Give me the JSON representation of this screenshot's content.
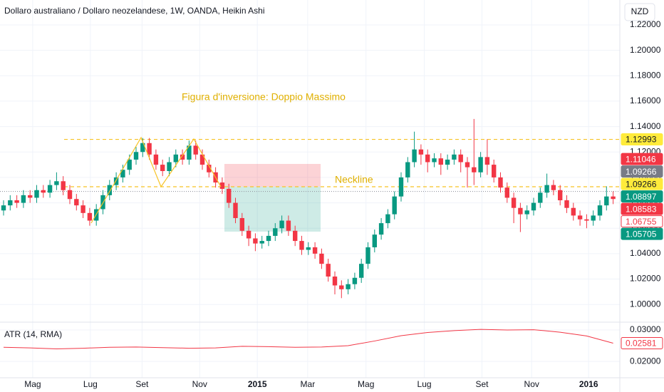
{
  "chart_data": {
    "type": "candlestick",
    "title": "Dollaro australiano / Dollaro neozelandese, 1W, OANDA, Heikin Ashi",
    "currency": "NZD",
    "annotations": [
      "Figura d'inversione: Doppio Massimo",
      "Neckline"
    ],
    "up_color": "#089981",
    "down_color": "#f23645",
    "candles": [
      [
        1.074,
        1.082,
        1.07,
        1.078
      ],
      [
        1.078,
        1.086,
        1.074,
        1.082
      ],
      [
        1.082,
        1.086,
        1.076,
        1.08
      ],
      [
        1.08,
        1.09,
        1.076,
        1.086
      ],
      [
        1.086,
        1.09,
        1.08,
        1.084
      ],
      [
        1.084,
        1.094,
        1.08,
        1.09
      ],
      [
        1.09,
        1.094,
        1.084,
        1.088
      ],
      [
        1.088,
        1.098,
        1.084,
        1.094
      ],
      [
        1.094,
        1.104,
        1.09,
        1.097
      ],
      [
        1.097,
        1.101,
        1.086,
        1.09
      ],
      [
        1.09,
        1.094,
        1.079,
        1.083
      ],
      [
        1.083,
        1.087,
        1.074,
        1.078
      ],
      [
        1.078,
        1.082,
        1.068,
        1.072
      ],
      [
        1.072,
        1.076,
        1.062,
        1.066
      ],
      [
        1.066,
        1.079,
        1.062,
        1.075
      ],
      [
        1.075,
        1.09,
        1.071,
        1.086
      ],
      [
        1.086,
        1.098,
        1.082,
        1.094
      ],
      [
        1.094,
        1.104,
        1.09,
        1.1
      ],
      [
        1.1,
        1.11,
        1.096,
        1.106
      ],
      [
        1.106,
        1.118,
        1.102,
        1.114
      ],
      [
        1.114,
        1.124,
        1.11,
        1.12
      ],
      [
        1.12,
        1.131,
        1.116,
        1.127
      ],
      [
        1.127,
        1.131,
        1.114,
        1.118
      ],
      [
        1.118,
        1.122,
        1.106,
        1.11
      ],
      [
        1.11,
        1.114,
        1.101,
        1.105
      ],
      [
        1.105,
        1.116,
        1.101,
        1.112
      ],
      [
        1.112,
        1.122,
        1.108,
        1.118
      ],
      [
        1.118,
        1.122,
        1.11,
        1.114
      ],
      [
        1.114,
        1.129,
        1.11,
        1.125
      ],
      [
        1.125,
        1.129,
        1.114,
        1.118
      ],
      [
        1.118,
        1.122,
        1.106,
        1.11
      ],
      [
        1.11,
        1.114,
        1.1,
        1.104
      ],
      [
        1.104,
        1.108,
        1.092,
        1.096
      ],
      [
        1.096,
        1.1,
        1.087,
        1.091
      ],
      [
        1.091,
        1.095,
        1.076,
        1.08
      ],
      [
        1.08,
        1.084,
        1.064,
        1.068
      ],
      [
        1.068,
        1.072,
        1.054,
        1.058
      ],
      [
        1.058,
        1.062,
        1.046,
        1.052
      ],
      [
        1.052,
        1.056,
        1.042,
        1.048
      ],
      [
        1.048,
        1.054,
        1.044,
        1.05
      ],
      [
        1.05,
        1.058,
        1.046,
        1.054
      ],
      [
        1.054,
        1.064,
        1.05,
        1.06
      ],
      [
        1.06,
        1.07,
        1.056,
        1.066
      ],
      [
        1.066,
        1.07,
        1.054,
        1.058
      ],
      [
        1.058,
        1.062,
        1.046,
        1.05
      ],
      [
        1.05,
        1.054,
        1.039,
        1.043
      ],
      [
        1.043,
        1.049,
        1.039,
        1.045
      ],
      [
        1.045,
        1.049,
        1.036,
        1.04
      ],
      [
        1.04,
        1.044,
        1.028,
        1.032
      ],
      [
        1.032,
        1.036,
        1.018,
        1.022
      ],
      [
        1.022,
        1.026,
        1.008,
        1.015
      ],
      [
        1.015,
        1.019,
        1.005,
        1.012
      ],
      [
        1.012,
        1.02,
        1.008,
        1.016
      ],
      [
        1.016,
        1.025,
        1.012,
        1.021
      ],
      [
        1.021,
        1.036,
        1.017,
        1.032
      ],
      [
        1.032,
        1.049,
        1.028,
        1.045
      ],
      [
        1.045,
        1.059,
        1.041,
        1.055
      ],
      [
        1.055,
        1.068,
        1.051,
        1.064
      ],
      [
        1.064,
        1.075,
        1.06,
        1.071
      ],
      [
        1.071,
        1.089,
        1.067,
        1.085
      ],
      [
        1.085,
        1.104,
        1.081,
        1.1
      ],
      [
        1.1,
        1.116,
        1.096,
        1.112
      ],
      [
        1.112,
        1.136,
        1.108,
        1.122
      ],
      [
        1.122,
        1.126,
        1.11,
        1.118
      ],
      [
        1.118,
        1.122,
        1.104,
        1.112
      ],
      [
        1.112,
        1.119,
        1.108,
        1.115
      ],
      [
        1.115,
        1.119,
        1.102,
        1.11
      ],
      [
        1.11,
        1.118,
        1.106,
        1.114
      ],
      [
        1.114,
        1.122,
        1.11,
        1.118
      ],
      [
        1.118,
        1.122,
        1.104,
        1.112
      ],
      [
        1.112,
        1.116,
        1.092,
        1.108
      ],
      [
        1.108,
        1.146,
        1.094,
        1.104
      ],
      [
        1.104,
        1.12,
        1.1,
        1.116
      ],
      [
        1.116,
        1.13,
        1.102,
        1.11
      ],
      [
        1.11,
        1.114,
        1.096,
        1.1
      ],
      [
        1.1,
        1.104,
        1.088,
        1.092
      ],
      [
        1.092,
        1.096,
        1.08,
        1.084
      ],
      [
        1.084,
        1.088,
        1.064,
        1.076
      ],
      [
        1.076,
        1.08,
        1.057,
        1.071
      ],
      [
        1.071,
        1.078,
        1.067,
        1.074
      ],
      [
        1.074,
        1.084,
        1.07,
        1.08
      ],
      [
        1.08,
        1.092,
        1.076,
        1.088
      ],
      [
        1.088,
        1.103,
        1.084,
        1.094
      ],
      [
        1.094,
        1.098,
        1.086,
        1.09
      ],
      [
        1.09,
        1.094,
        1.078,
        1.082
      ],
      [
        1.082,
        1.086,
        1.072,
        1.076
      ],
      [
        1.076,
        1.08,
        1.066,
        1.07
      ],
      [
        1.07,
        1.074,
        1.062,
        1.067
      ],
      [
        1.067,
        1.071,
        1.06,
        1.066
      ],
      [
        1.066,
        1.074,
        1.062,
        1.07
      ],
      [
        1.07,
        1.082,
        1.066,
        1.078
      ],
      [
        1.078,
        1.093,
        1.074,
        1.085
      ],
      [
        1.085,
        1.089,
        1.079,
        1.083
      ]
    ],
    "ylim": [
      0.9861,
      1.2396
    ],
    "yticks": [
      {
        "value": 1.0,
        "label": "1.00000"
      },
      {
        "value": 1.02,
        "label": "1.02000"
      },
      {
        "value": 1.04,
        "label": "1.04000"
      },
      {
        "value": 1.06,
        "label": "1.06000"
      },
      {
        "value": 1.08,
        "label": "1.08000"
      },
      {
        "value": 1.1,
        "label": "1.10000"
      },
      {
        "value": 1.12,
        "label": "1.12000"
      },
      {
        "value": 1.14,
        "label": "1.14000"
      },
      {
        "value": 1.16,
        "label": "1.16000"
      },
      {
        "value": 1.18,
        "label": "1.18000"
      },
      {
        "value": 1.2,
        "label": "1.20000"
      },
      {
        "value": 1.22,
        "label": "1.22000"
      }
    ],
    "xticks": [
      {
        "value": 4.4,
        "label": "Mag"
      },
      {
        "value": 13.1,
        "label": "Lug"
      },
      {
        "value": 20.9,
        "label": "Set"
      },
      {
        "value": 29.6,
        "label": "Nov"
      },
      {
        "value": 38.3,
        "label": "2015"
      },
      {
        "value": 45.9,
        "label": "Mar"
      },
      {
        "value": 54.7,
        "label": "Mag"
      },
      {
        "value": 63.5,
        "label": "Lug"
      },
      {
        "value": 72.2,
        "label": "Set"
      },
      {
        "value": 79.7,
        "label": "Nov"
      },
      {
        "value": 88.3,
        "label": "2016"
      }
    ],
    "price_lines": [
      {
        "value": 1.12993,
        "color": "#f7c325",
        "style": "dashed"
      },
      {
        "value": 1.09266,
        "color": "#f7c325",
        "style": "dashed"
      },
      {
        "value": 1.08897,
        "color": "#9598a1",
        "style": "dotted"
      }
    ],
    "price_labels": [
      {
        "value": 1.12993,
        "bg": "#ffeb3b",
        "fg": "#131722"
      },
      {
        "value": 1.11046,
        "bg": "#f23645",
        "fg": "#ffffff"
      },
      {
        "value": 1.09266,
        "bg": "#787b86",
        "fg": "#ffffff"
      },
      {
        "value": 1.09266,
        "bg": "#ffeb3b",
        "fg": "#131722"
      },
      {
        "value": 1.08897,
        "bg": "#089981",
        "fg": "#ffffff"
      },
      {
        "value": 1.08583,
        "bg": "#f23645",
        "fg": "#ffffff"
      },
      {
        "value": 1.06755,
        "bg": "#ffffff",
        "fg": "#f23645"
      },
      {
        "value": 1.05705,
        "bg": "#089981",
        "fg": "#ffffff"
      }
    ],
    "atr": {
      "name": "ATR (14, RMA)",
      "color": "#f23645",
      "x": [
        0,
        4,
        8,
        12,
        16,
        20,
        24,
        28,
        32,
        36,
        40,
        44,
        48,
        52,
        56,
        60,
        64,
        68,
        72,
        76,
        80,
        84,
        88,
        92
      ],
      "values": [
        0.0245,
        0.0243,
        0.024,
        0.0242,
        0.0245,
        0.0246,
        0.0244,
        0.0242,
        0.0243,
        0.0248,
        0.0247,
        0.0245,
        0.0246,
        0.025,
        0.0265,
        0.0282,
        0.0292,
        0.0298,
        0.0302,
        0.03,
        0.0301,
        0.0293,
        0.0281,
        0.0258
      ],
      "last": 0.02581,
      "ylim": [
        0.0148,
        0.0325
      ],
      "yticks": [
        {
          "value": 0.03,
          "label": "0.03000"
        },
        {
          "value": 0.02,
          "label": "0.02000"
        }
      ]
    }
  }
}
